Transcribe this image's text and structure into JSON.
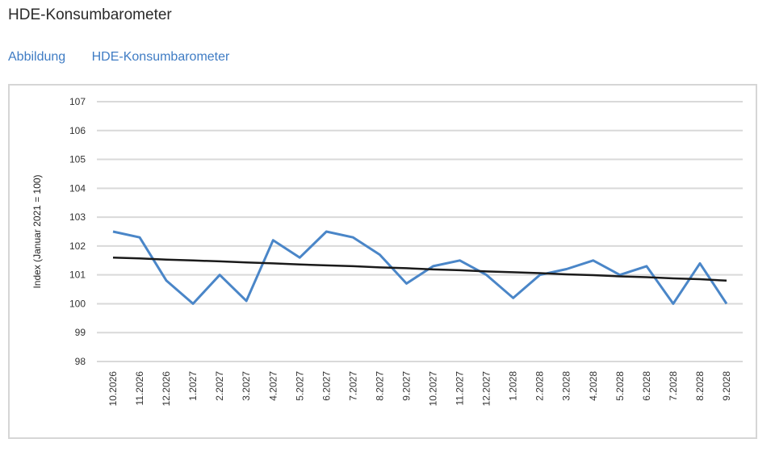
{
  "page": {
    "title": "HDE-Konsumbarometer"
  },
  "caption": {
    "label": "Abbildung",
    "name": "HDE-Konsumbarometer"
  },
  "chart_data": {
    "type": "line",
    "title": "",
    "xlabel": "",
    "ylabel": "Index (Januar 2021 = 100)",
    "ylim": [
      98,
      107
    ],
    "yticks": [
      98,
      99,
      100,
      101,
      102,
      103,
      104,
      105,
      106,
      107
    ],
    "grid": true,
    "legend": "none",
    "categories": [
      "10.2026",
      "11.2026",
      "12.2026",
      "1.2027",
      "2.2027",
      "3.2027",
      "4.2027",
      "5.2027",
      "6.2027",
      "7.2027",
      "8.2027",
      "9.2027",
      "10.2027",
      "11.2027",
      "12.2027",
      "1.2028",
      "2.2028",
      "3.2028",
      "4.2028",
      "5.2028",
      "6.2028",
      "7.2028",
      "8.2028",
      "9.2028"
    ],
    "series": [
      {
        "values": [
          102.5,
          102.3,
          100.8,
          100.0,
          101.0,
          100.1,
          102.2,
          101.6,
          102.5,
          102.3,
          101.7,
          100.7,
          101.3,
          101.5,
          101.0,
          100.2,
          101.0,
          101.2,
          101.5,
          101.0,
          101.3,
          100.0,
          101.4,
          100.0
        ],
        "color": "#4a86c8"
      },
      {
        "values": [
          101.6,
          101.57,
          101.53,
          101.5,
          101.47,
          101.43,
          101.4,
          101.36,
          101.33,
          101.3,
          101.26,
          101.23,
          101.19,
          101.16,
          101.12,
          101.09,
          101.06,
          101.02,
          100.99,
          100.95,
          100.92,
          100.88,
          100.85,
          100.8
        ],
        "color": "#1a1a1a"
      }
    ]
  }
}
